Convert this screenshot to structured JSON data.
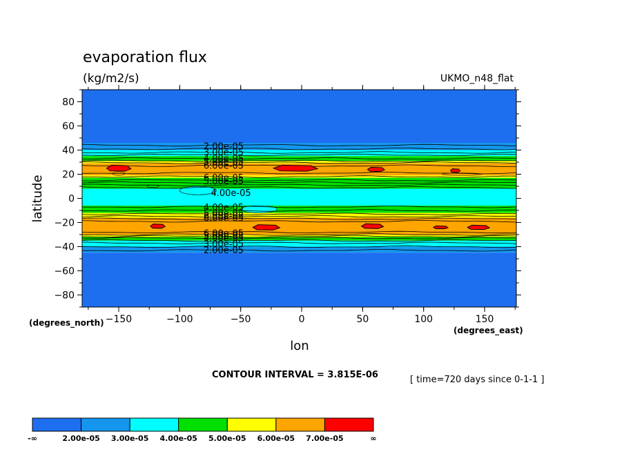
{
  "header": {
    "title": "evaporation flux",
    "units": "(kg/m2/s)",
    "model": "UKMO_n48_flat"
  },
  "chart_data": {
    "type": "heatmap",
    "title": "evaporation flux",
    "subtitle": "(kg/m2/s)",
    "xlabel": "lon",
    "ylabel": "latitude",
    "x_units": "(degrees_east)",
    "y_units": "(degrees_north)",
    "xlim": [
      -180,
      176
    ],
    "ylim": [
      -90,
      90
    ],
    "xticks": [
      -150,
      -100,
      -50,
      0,
      50,
      100,
      150
    ],
    "yticks": [
      80,
      60,
      40,
      20,
      0,
      -20,
      -40,
      -60,
      -80
    ],
    "contour_interval": "CONTOUR INTERVAL = 3.815E-06",
    "time_label": "[ time=720 days since 0-1-1 ]",
    "levels": [
      {
        "label": "-∞",
        "value": null
      },
      {
        "label": "2.00e-05",
        "value": 2e-05
      },
      {
        "label": "3.00e-05",
        "value": 3e-05
      },
      {
        "label": "4.00e-05",
        "value": 4e-05
      },
      {
        "label": "5.00e-05",
        "value": 5e-05
      },
      {
        "label": "6.00e-05",
        "value": 6e-05
      },
      {
        "label": "7.00e-05",
        "value": 7e-05
      },
      {
        "label": "∞",
        "value": null
      }
    ],
    "colors": [
      "#1e6ef0",
      "#1496ee",
      "#00ffff",
      "#00e000",
      "#ffff00",
      "#ffa500",
      "#ff0000"
    ],
    "bands": [
      {
        "lat_min": 46,
        "lat_max": 90,
        "class": 0
      },
      {
        "lat_min": 40,
        "lat_max": 46,
        "class": 1
      },
      {
        "lat_min": 35,
        "lat_max": 40,
        "class": 2
      },
      {
        "lat_min": 31,
        "lat_max": 35,
        "class": 3
      },
      {
        "lat_min": 29,
        "lat_max": 31,
        "class": 4
      },
      {
        "lat_min": 19,
        "lat_max": 29,
        "class": 5
      },
      {
        "lat_min": 17,
        "lat_max": 19,
        "class": 4
      },
      {
        "lat_min": 8,
        "lat_max": 17,
        "class": 3
      },
      {
        "lat_min": -6,
        "lat_max": 8,
        "class": 2
      },
      {
        "lat_min": -12,
        "lat_max": -6,
        "class": 3
      },
      {
        "lat_min": -16,
        "lat_max": -12,
        "class": 4
      },
      {
        "lat_min": -30,
        "lat_max": -16,
        "class": 5
      },
      {
        "lat_min": -32,
        "lat_max": -30,
        "class": 4
      },
      {
        "lat_min": -35,
        "lat_max": -32,
        "class": 3
      },
      {
        "lat_min": -40,
        "lat_max": -35,
        "class": 2
      },
      {
        "lat_min": -45,
        "lat_max": -40,
        "class": 1
      },
      {
        "lat_min": -90,
        "lat_max": -45,
        "class": 0
      }
    ],
    "features": [
      {
        "lon_min": -100,
        "lon_max": -70,
        "lat_min": 3,
        "lat_max": 10,
        "class": 2
      },
      {
        "lon_min": -127,
        "lon_max": -117,
        "lat_min": 9,
        "lat_max": 11,
        "class": 3
      },
      {
        "lon_min": -50,
        "lon_max": -20,
        "lat_min": -12,
        "lat_max": -6,
        "class": 2
      },
      {
        "lon_min": -155,
        "lon_max": -145,
        "lat_min": 19,
        "lat_max": 22,
        "class": 5
      },
      {
        "lon_min": 115,
        "lon_max": 148,
        "lat_min": 19,
        "lat_max": 21,
        "class": 5
      }
    ],
    "hotspots": [
      {
        "lon": -150,
        "lat": 25,
        "dlon": 10,
        "dlat": 2.5,
        "class": 6
      },
      {
        "lon": -5,
        "lat": 25,
        "dlon": 18,
        "dlat": 2.5,
        "class": 6
      },
      {
        "lon": 61,
        "lat": 24,
        "dlon": 7,
        "dlat": 1.8,
        "class": 6
      },
      {
        "lon": 126,
        "lat": 23,
        "dlon": 4,
        "dlat": 1.5,
        "class": 6
      },
      {
        "lon": -118,
        "lat": -23,
        "dlon": 6,
        "dlat": 1.8,
        "class": 6
      },
      {
        "lon": -29,
        "lat": -24,
        "dlon": 11,
        "dlat": 2.2,
        "class": 6
      },
      {
        "lon": 58,
        "lat": -23,
        "dlon": 9,
        "dlat": 2.0,
        "class": 6
      },
      {
        "lon": 145,
        "lat": -24,
        "dlon": 9,
        "dlat": 1.8,
        "class": 6
      },
      {
        "lon": 114,
        "lat": -24,
        "dlon": 6,
        "dlat": 1.2,
        "class": 6
      }
    ],
    "contour_lines": [
      44,
      41,
      38,
      36,
      33,
      31,
      29.5,
      27,
      21,
      18,
      15,
      13,
      11,
      9,
      -7,
      -10,
      -13,
      -15,
      -17,
      -19,
      -28,
      -30,
      -31.5,
      -33,
      -35,
      -37,
      -40,
      -43
    ],
    "contour_labels": [
      {
        "lon": -64,
        "lat": 43.5,
        "text": "2.00e-05"
      },
      {
        "lon": -64,
        "lat": 38.5,
        "text": "3.00e-05"
      },
      {
        "lon": -64,
        "lat": 33.5,
        "text": "4.00e-05"
      },
      {
        "lon": -64,
        "lat": 30.5,
        "text": "5.00e-05"
      },
      {
        "lon": -64,
        "lat": 27.5,
        "text": "6.00e-05"
      },
      {
        "lon": -64,
        "lat": 17.5,
        "text": "6.00e-05"
      },
      {
        "lon": -64,
        "lat": 14.5,
        "text": "5.00e-05"
      },
      {
        "lon": -58,
        "lat": 5,
        "text": "4.00e-05"
      },
      {
        "lon": -64,
        "lat": -7,
        "text": "4.00e-05"
      },
      {
        "lon": -64,
        "lat": -12,
        "text": "5.00e-05"
      },
      {
        "lon": -64,
        "lat": -14,
        "text": "6.00e-05"
      },
      {
        "lon": -64,
        "lat": -16,
        "text": "6.00e-05"
      },
      {
        "lon": -64,
        "lat": -28.5,
        "text": "6.00e-05"
      },
      {
        "lon": -64,
        "lat": -30.5,
        "text": "5.00e-05"
      },
      {
        "lon": -64,
        "lat": -32.5,
        "text": "4.00e-05"
      },
      {
        "lon": -64,
        "lat": -37.5,
        "text": "3.00e-05"
      },
      {
        "lon": -64,
        "lat": -42.5,
        "text": "2.00e-05"
      }
    ],
    "legend_placement": "bottom-left"
  }
}
